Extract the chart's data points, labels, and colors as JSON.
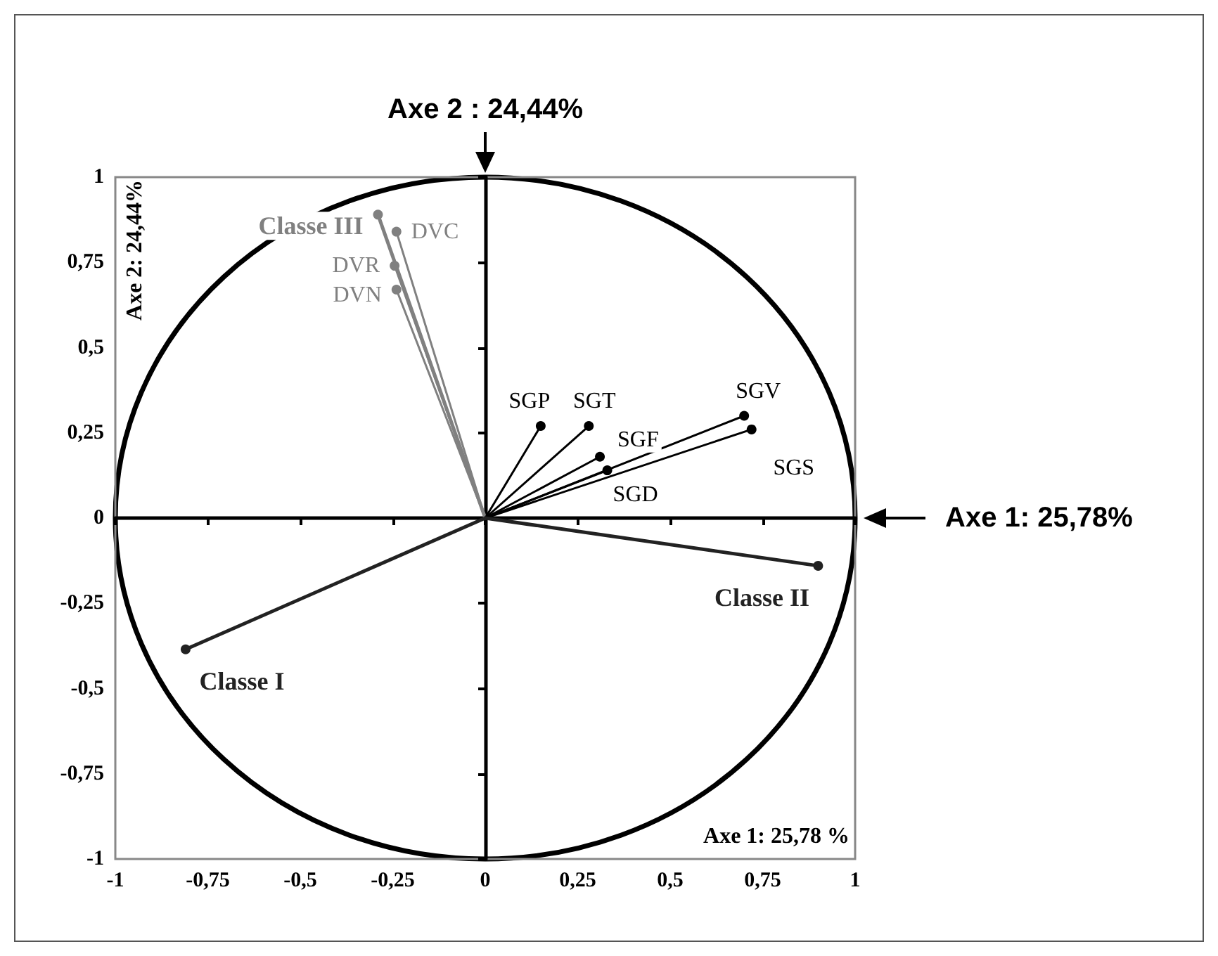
{
  "chart_data": {
    "type": "line",
    "xlabel": "Axe 1: 25,78 %",
    "ylabel": "Axe 2: 24,44%",
    "annotations": [
      "Axe 2 : 24,44%",
      "Axe 1: 25,78%"
    ],
    "xlim": [
      -1,
      1
    ],
    "ylim": [
      -1,
      1
    ],
    "xticks": [
      -1,
      {
        "value": -0.75,
        "label": "-0,75"
      },
      {
        "value": -0.5,
        "label": "-0,5"
      },
      {
        "value": -0.25,
        "label": "-0,25"
      },
      0,
      {
        "value": 0.25,
        "label": "0,25"
      },
      {
        "value": 0.5,
        "label": "0,5"
      },
      {
        "value": 0.75,
        "label": "0,75"
      },
      1
    ],
    "yticks": [
      -1,
      {
        "value": -0.75,
        "label": "-0,75"
      },
      {
        "value": -0.5,
        "label": "-0,5"
      },
      {
        "value": -0.25,
        "label": "-0,25"
      },
      0,
      {
        "value": 0.25,
        "label": "0,25"
      },
      {
        "value": 0.5,
        "label": "0,5"
      },
      {
        "value": 0.75,
        "label": "0,75"
      },
      1
    ],
    "marker": "circle",
    "series": [
      {
        "name": "Classe III",
        "color": "#808080",
        "x": [
          0,
          -0.29
        ],
        "values": [
          0,
          0.89
        ]
      },
      {
        "name": "DVC",
        "color": "#808080",
        "x": [
          0,
          -0.24
        ],
        "values": [
          0,
          0.84
        ]
      },
      {
        "name": "DVR",
        "color": "#808080",
        "x": [
          0,
          -0.245
        ],
        "values": [
          0,
          0.74
        ]
      },
      {
        "name": "DVN",
        "color": "#808080",
        "x": [
          0,
          -0.24
        ],
        "values": [
          0,
          0.67
        ]
      },
      {
        "name": "SGP",
        "color": "#000000",
        "x": [
          0,
          0.15
        ],
        "values": [
          0,
          0.27
        ]
      },
      {
        "name": "SGT",
        "color": "#000000",
        "x": [
          0,
          0.28
        ],
        "values": [
          0,
          0.27
        ]
      },
      {
        "name": "SGF",
        "color": "#000000",
        "x": [
          0,
          0.31
        ],
        "values": [
          0,
          0.18
        ]
      },
      {
        "name": "SGD",
        "color": "#000000",
        "x": [
          0,
          0.33
        ],
        "values": [
          0,
          0.14
        ]
      },
      {
        "name": "SGV",
        "color": "#000000",
        "x": [
          0,
          0.7
        ],
        "values": [
          0,
          0.3
        ]
      },
      {
        "name": "SGS",
        "color": "#000000",
        "x": [
          0,
          0.72
        ],
        "values": [
          0,
          0.26
        ]
      },
      {
        "name": "Classe II",
        "color": "#222222",
        "x": [
          0,
          0.9
        ],
        "values": [
          0,
          -0.14
        ]
      },
      {
        "name": "Classe I",
        "color": "#222222",
        "x": [
          0,
          -0.81
        ],
        "values": [
          0,
          -0.385
        ]
      }
    ]
  }
}
